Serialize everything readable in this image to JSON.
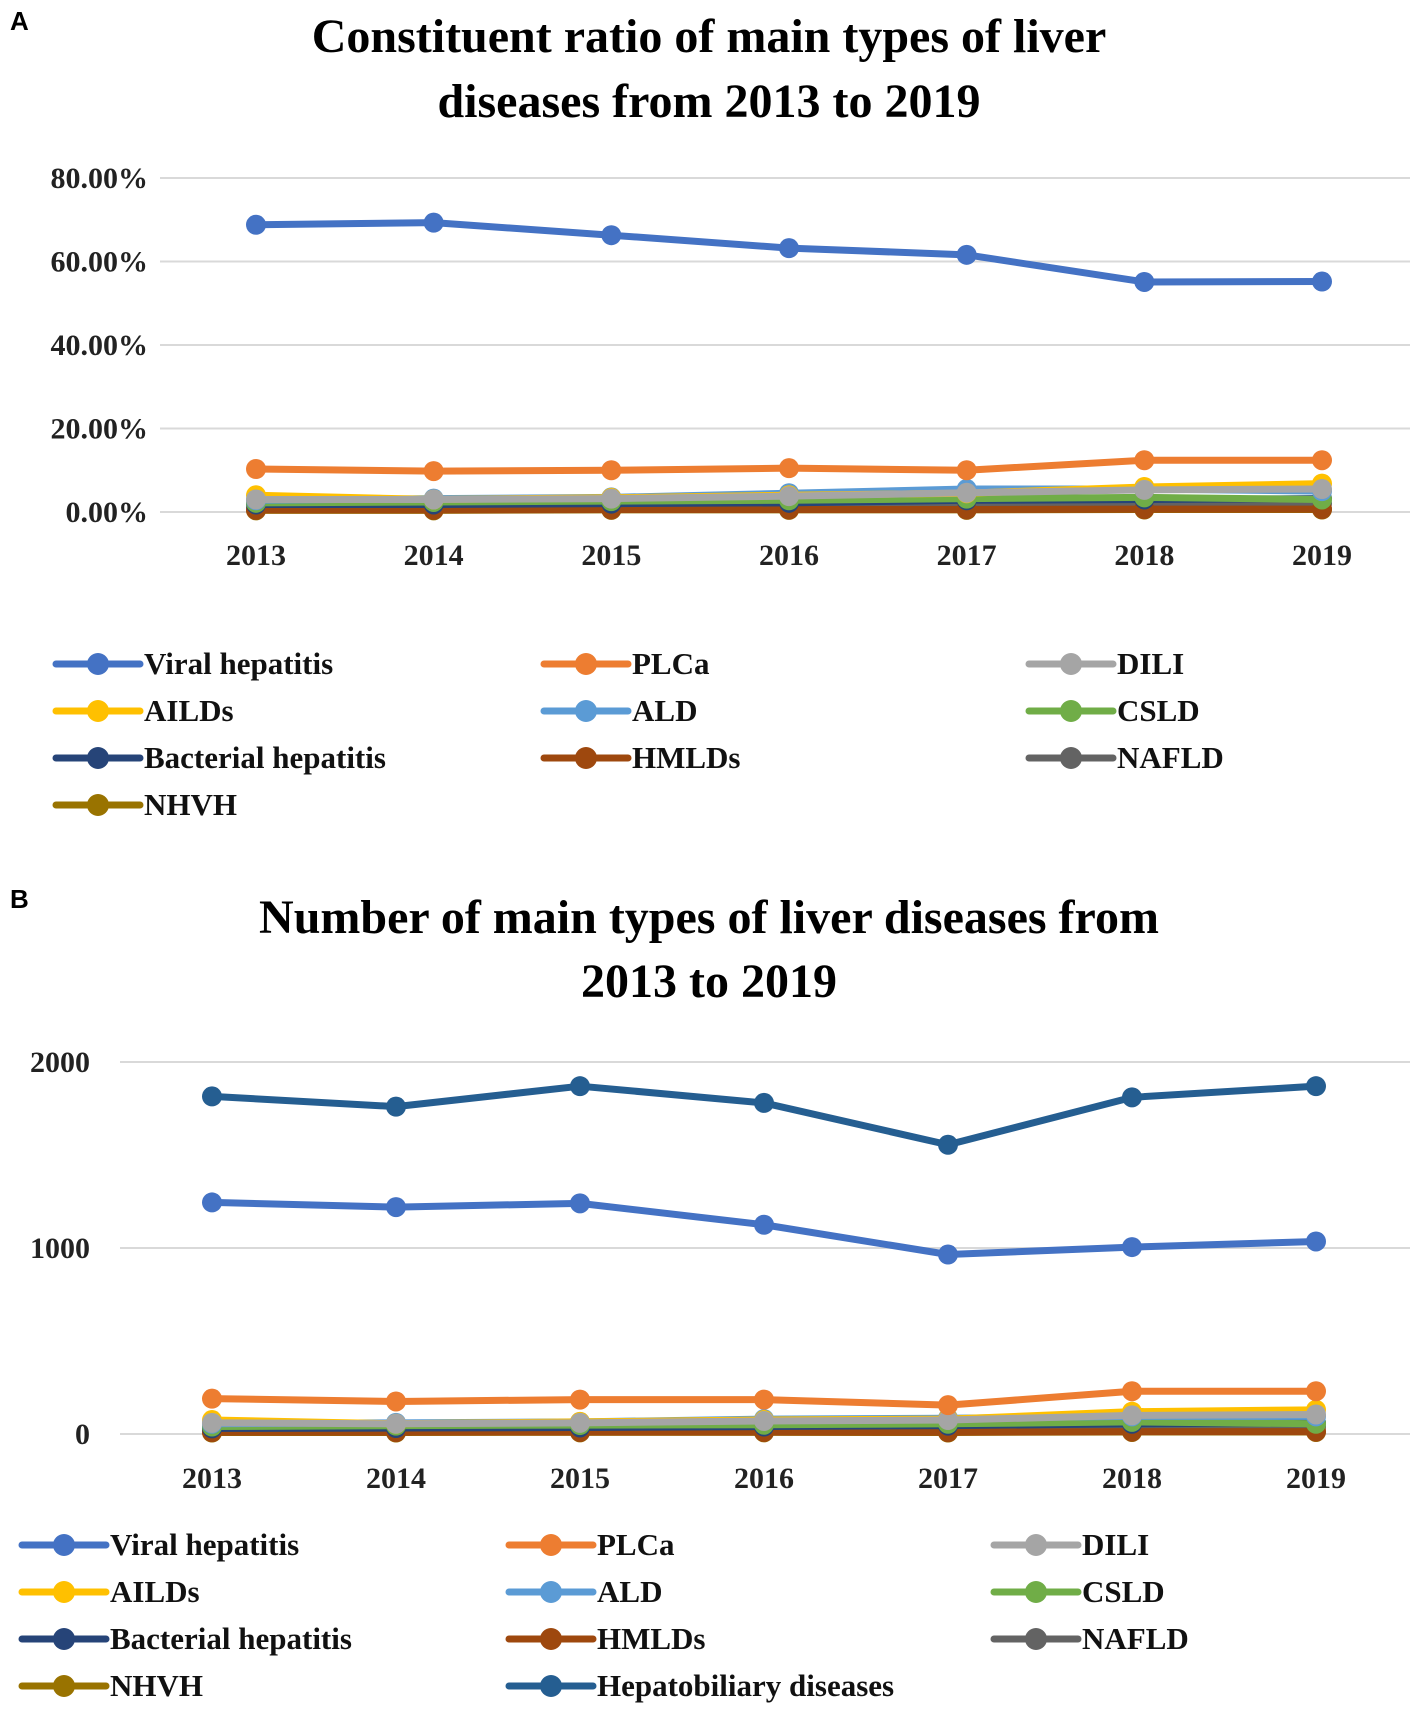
{
  "panels": [
    {
      "label": "A",
      "title_line1": "Constituent ratio of main types of liver",
      "title_line2": "diseases from 2013 to 2019"
    },
    {
      "label": "B",
      "title_line1": "Number of main types of liver diseases from",
      "title_line2": "2013 to 2019"
    }
  ],
  "chart_data": [
    {
      "type": "line",
      "title": "Constituent ratio of main types of liver diseases from 2013 to 2019",
      "categories": [
        "2013",
        "2014",
        "2015",
        "2016",
        "2017",
        "2018",
        "2019"
      ],
      "ylim": [
        0,
        80
      ],
      "yticks": [
        0,
        20,
        40,
        60,
        80
      ],
      "ytick_labels": [
        "0.00%",
        "20.00%",
        "40.00%",
        "60.00%",
        "80.00%"
      ],
      "grid": true,
      "legend_position": "bottom",
      "series": [
        {
          "name": "Viral hepatitis",
          "color": "#4472C4",
          "values": [
            68.8,
            69.3,
            66.3,
            63.2,
            61.6,
            55.1,
            55.2
          ]
        },
        {
          "name": "PLCa",
          "color": "#ED7D31",
          "values": [
            10.3,
            9.8,
            10.0,
            10.5,
            10.0,
            12.4,
            12.4
          ]
        },
        {
          "name": "DILI",
          "color": "#A5A5A5",
          "values": [
            3.0,
            3.0,
            3.2,
            3.8,
            4.6,
            5.3,
            5.5
          ]
        },
        {
          "name": "AILDs",
          "color": "#FFC000",
          "values": [
            4.0,
            3.0,
            3.4,
            4.0,
            4.5,
            6.0,
            6.8
          ]
        },
        {
          "name": "ALD",
          "color": "#5B9BD5",
          "values": [
            2.8,
            3.2,
            3.5,
            4.5,
            5.5,
            5.5,
            5.0
          ]
        },
        {
          "name": "CSLD",
          "color": "#70AD47",
          "values": [
            2.2,
            2.4,
            2.6,
            2.8,
            3.2,
            3.5,
            3.0
          ]
        },
        {
          "name": "Bacterial hepatitis",
          "color": "#264478",
          "values": [
            1.8,
            1.8,
            2.0,
            2.2,
            2.8,
            3.0,
            3.2
          ]
        },
        {
          "name": "HMLDs",
          "color": "#9E480E",
          "values": [
            0.5,
            0.5,
            0.6,
            0.6,
            0.6,
            0.7,
            0.7
          ]
        },
        {
          "name": "NAFLD",
          "color": "#636363",
          "values": [
            0.8,
            0.8,
            1.0,
            1.2,
            1.5,
            1.8,
            2.0
          ]
        },
        {
          "name": "NHVH",
          "color": "#997300",
          "values": [
            0.4,
            0.4,
            0.5,
            0.5,
            0.5,
            0.6,
            0.6
          ]
        }
      ]
    },
    {
      "type": "line",
      "title": "Number of main types of liver diseases from 2013 to 2019",
      "categories": [
        "2013",
        "2014",
        "2015",
        "2016",
        "2017",
        "2018",
        "2019"
      ],
      "ylim": [
        0,
        2000
      ],
      "yticks": [
        0,
        1000,
        2000
      ],
      "ytick_labels": [
        "0",
        "1000",
        "2000"
      ],
      "grid": true,
      "legend_position": "bottom",
      "series": [
        {
          "name": "Viral hepatitis",
          "color": "#4472C4",
          "values": [
            1245,
            1220,
            1240,
            1125,
            965,
            1005,
            1035
          ]
        },
        {
          "name": "PLCa",
          "color": "#ED7D31",
          "values": [
            190,
            175,
            185,
            185,
            155,
            230,
            230
          ]
        },
        {
          "name": "DILI",
          "color": "#A5A5A5",
          "values": [
            60,
            55,
            60,
            70,
            75,
            100,
            105
          ]
        },
        {
          "name": "AILDs",
          "color": "#FFC000",
          "values": [
            75,
            55,
            65,
            75,
            80,
            120,
            130
          ]
        },
        {
          "name": "ALD",
          "color": "#5B9BD5",
          "values": [
            55,
            60,
            65,
            80,
            85,
            95,
            95
          ]
        },
        {
          "name": "CSLD",
          "color": "#70AD47",
          "values": [
            40,
            45,
            48,
            50,
            55,
            65,
            55
          ]
        },
        {
          "name": "Bacterial hepatitis",
          "color": "#264478",
          "values": [
            30,
            32,
            35,
            40,
            45,
            55,
            60
          ]
        },
        {
          "name": "HMLDs",
          "color": "#9E480E",
          "values": [
            10,
            10,
            11,
            11,
            10,
            13,
            13
          ]
        },
        {
          "name": "NAFLD",
          "color": "#636363",
          "values": [
            15,
            15,
            18,
            20,
            25,
            32,
            38
          ]
        },
        {
          "name": "NHVH",
          "color": "#997300",
          "values": [
            8,
            8,
            9,
            9,
            8,
            11,
            11
          ]
        },
        {
          "name": "Hepatobiliary diseases",
          "color": "#255E91",
          "values": [
            1815,
            1760,
            1870,
            1780,
            1555,
            1810,
            1870
          ]
        }
      ]
    }
  ]
}
